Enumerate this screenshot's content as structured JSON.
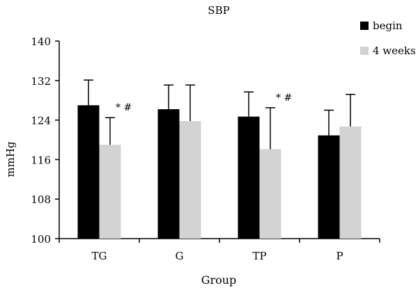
{
  "chart_data": {
    "type": "bar",
    "title": "SBP",
    "xlabel": "Group",
    "ylabel": "mmHg",
    "ylim": [
      100,
      140
    ],
    "yticks": [
      100,
      108,
      116,
      124,
      132,
      140
    ],
    "grid": false,
    "legend_position": "top-right",
    "categories": [
      "TG",
      "G",
      "TP",
      "P"
    ],
    "series": [
      {
        "name": "begin",
        "color": "#000000",
        "values": [
          127.0,
          126.2,
          124.7,
          120.9
        ],
        "errors": [
          5.1,
          4.9,
          5.0,
          5.1
        ],
        "annotations": [
          "",
          "",
          "",
          ""
        ]
      },
      {
        "name": "4 weeks",
        "color": "#d3d3d3",
        "values": [
          119.0,
          123.8,
          118.1,
          122.7
        ],
        "errors": [
          5.5,
          7.3,
          8.4,
          6.5
        ],
        "annotations": [
          "* #",
          "",
          "* #",
          ""
        ]
      }
    ]
  }
}
